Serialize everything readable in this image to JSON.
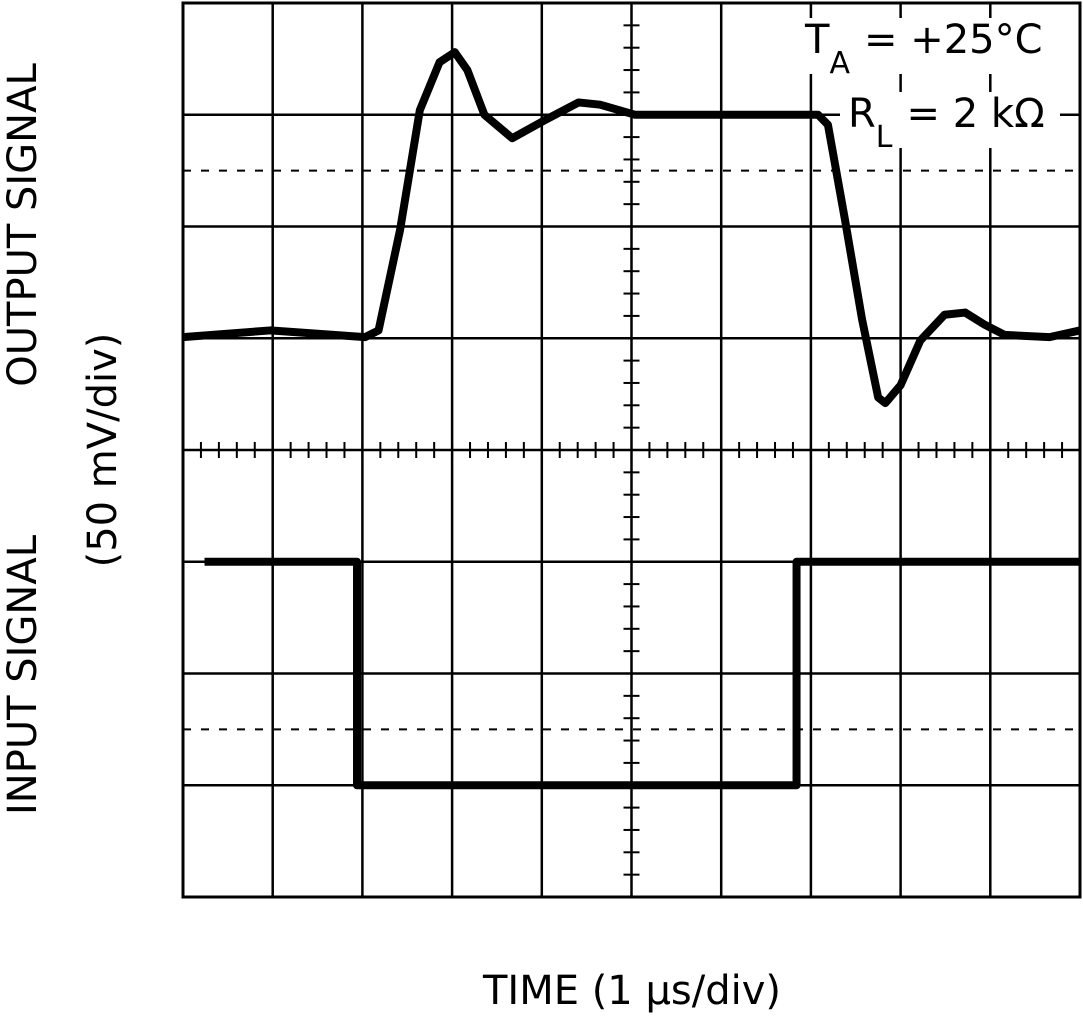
{
  "chart_data": {
    "type": "line",
    "x_label": "TIME (1 µs/div)",
    "y_labels": {
      "output": "OUTPUT SIGNAL",
      "scale": "(50 mV/div)",
      "input": "INPUT SIGNAL"
    },
    "annotations": [
      {
        "symbol": "T",
        "subscript": "A",
        "text": "= +25°C"
      },
      {
        "symbol": "R",
        "subscript": "L",
        "text": "= 2 kΩ"
      }
    ],
    "xlim": [
      0,
      10
    ],
    "ylim": [
      0,
      8
    ],
    "xticks": [
      0,
      1,
      2,
      3,
      4,
      5,
      6,
      7,
      8,
      9,
      10
    ],
    "yticks": [
      0,
      1,
      2,
      3,
      4,
      5,
      6,
      7,
      8
    ],
    "dashed_lines": [
      1.5,
      6.5
    ],
    "minor_tick_step": 0.2,
    "grid": true,
    "series": [
      {
        "name": "OUTPUT SIGNAL",
        "color": "#000000",
        "x": [
          0,
          0.97,
          2.03,
          2.18,
          2.42,
          2.64,
          2.86,
          3.03,
          3.17,
          3.36,
          3.67,
          4.03,
          4.41,
          4.65,
          5.04,
          5.76,
          7.08,
          7.19,
          7.38,
          7.57,
          7.75,
          7.83,
          8.0,
          8.22,
          8.49,
          8.72,
          8.94,
          9.16,
          9.66,
          10
        ],
        "values": [
          5.01,
          5.07,
          5.01,
          5.07,
          5.97,
          7.04,
          7.47,
          7.56,
          7.4,
          7.0,
          6.79,
          6.95,
          7.11,
          7.09,
          7.0,
          7.0,
          7.0,
          6.91,
          6.06,
          5.17,
          4.47,
          4.42,
          4.58,
          4.98,
          5.21,
          5.23,
          5.12,
          5.03,
          5.01,
          5.07
        ]
      },
      {
        "name": "INPUT SIGNAL",
        "color": "#000000",
        "x": [
          0.24,
          1.94,
          1.94,
          6.84,
          6.84,
          10
        ],
        "values": [
          3.0,
          3.0,
          1.0,
          1.0,
          3.0,
          3.0
        ]
      }
    ]
  }
}
